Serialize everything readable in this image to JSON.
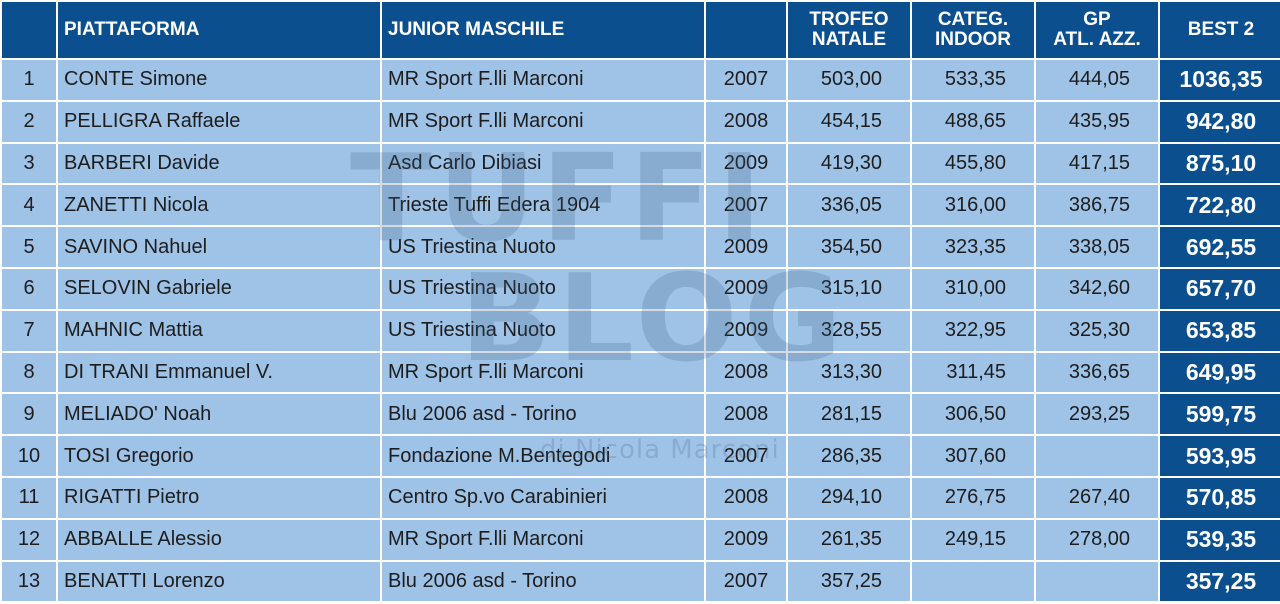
{
  "header": {
    "col_pos": "",
    "col_platform": "PIATTAFORMA",
    "col_category": "JUNIOR MASCHILE",
    "col_year": "",
    "col_trofeo_line1": "TROFEO",
    "col_trofeo_line2": "NATALE",
    "col_categ_line1": "CATEG.",
    "col_categ_line2": "INDOOR",
    "col_gp_line1": "GP",
    "col_gp_line2": "ATL. AZZ.",
    "col_best": "BEST 2"
  },
  "rows": [
    {
      "pos": "1",
      "name": "CONTE Simone",
      "club": "MR Sport F.lli Marconi",
      "year": "2007",
      "trofeo": "503,00",
      "categ": "533,35",
      "gp": "444,05",
      "best": "1036,35"
    },
    {
      "pos": "2",
      "name": "PELLIGRA Raffaele",
      "club": "MR Sport F.lli Marconi",
      "year": "2008",
      "trofeo": "454,15",
      "categ": "488,65",
      "gp": "435,95",
      "best": "942,80"
    },
    {
      "pos": "3",
      "name": "BARBERI Davide",
      "club": "Asd Carlo Dibiasi",
      "year": "2009",
      "trofeo": "419,30",
      "categ": "455,80",
      "gp": "417,15",
      "best": "875,10"
    },
    {
      "pos": "4",
      "name": "ZANETTI Nicola",
      "club": "Trieste Tuffi Edera 1904",
      "year": "2007",
      "trofeo": "336,05",
      "categ": "316,00",
      "gp": "386,75",
      "best": "722,80"
    },
    {
      "pos": "5",
      "name": "SAVINO Nahuel",
      "club": "US Triestina Nuoto",
      "year": "2009",
      "trofeo": "354,50",
      "categ": "323,35",
      "gp": "338,05",
      "best": "692,55"
    },
    {
      "pos": "6",
      "name": "SELOVIN Gabriele",
      "club": "US Triestina Nuoto",
      "year": "2009",
      "trofeo": "315,10",
      "categ": "310,00",
      "gp": "342,60",
      "best": "657,70"
    },
    {
      "pos": "7",
      "name": "MAHNIC Mattia",
      "club": "US Triestina Nuoto",
      "year": "2009",
      "trofeo": "328,55",
      "categ": "322,95",
      "gp": "325,30",
      "best": "653,85"
    },
    {
      "pos": "8",
      "name": "DI TRANI Emmanuel V.",
      "club": "MR Sport F.lli Marconi",
      "year": "2008",
      "trofeo": "313,30",
      "categ": "311,45",
      "gp": "336,65",
      "best": "649,95"
    },
    {
      "pos": "9",
      "name": "MELIADO' Noah",
      "club": "Blu 2006 asd - Torino",
      "year": "2008",
      "trofeo": "281,15",
      "categ": "306,50",
      "gp": "293,25",
      "best": "599,75"
    },
    {
      "pos": "10",
      "name": "TOSI Gregorio",
      "club": "Fondazione M.Bentegodi",
      "year": "2007",
      "trofeo": "286,35",
      "categ": "307,60",
      "gp": "",
      "best": "593,95"
    },
    {
      "pos": "11",
      "name": "RIGATTI Pietro",
      "club": "Centro Sp.vo Carabinieri",
      "year": "2008",
      "trofeo": "294,10",
      "categ": "276,75",
      "gp": "267,40",
      "best": "570,85"
    },
    {
      "pos": "12",
      "name": "ABBALLE Alessio",
      "club": "MR Sport F.lli Marconi",
      "year": "2009",
      "trofeo": "261,35",
      "categ": "249,15",
      "gp": "278,00",
      "best": "539,35"
    },
    {
      "pos": "13",
      "name": "BENATTI Lorenzo",
      "club": "Blu 2006 asd - Torino",
      "year": "2007",
      "trofeo": "357,25",
      "categ": "",
      "gp": "",
      "best": "357,25"
    }
  ],
  "watermark": {
    "line1": "TUFFI",
    "line2": "BLOG",
    "line3": "di Nicola Marconi"
  },
  "colors": {
    "header_bg": "#0b4f8f",
    "row_bg": "#9fc2e7",
    "best_bg": "#0b4f8f"
  }
}
